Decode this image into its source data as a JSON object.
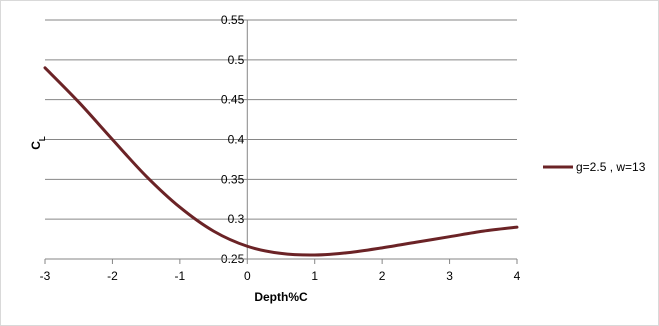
{
  "chart_data": {
    "type": "line",
    "title": "",
    "xlabel": "Depth%C",
    "ylabel": "C",
    "ylabel_subscript": "L",
    "xlim": [
      -3,
      4
    ],
    "ylim": [
      0.25,
      0.55
    ],
    "x_ticks": [
      "-3",
      "-2",
      "-1",
      "0",
      "1",
      "2",
      "3",
      "4"
    ],
    "y_ticks": [
      "0.25",
      "0.3",
      "0.35",
      "0.4",
      "0.45",
      "0.5",
      "0.55"
    ],
    "grid": "horizontal",
    "legend_position": "right",
    "series": [
      {
        "name": "g=2.5 , w=13",
        "color": "#6b2326",
        "x": [
          -3,
          -2.5,
          -2,
          -1.5,
          -1,
          -0.5,
          0,
          0.5,
          1,
          1.5,
          2,
          2.5,
          3,
          3.5,
          4
        ],
        "y": [
          0.49,
          0.447,
          0.4,
          0.354,
          0.315,
          0.285,
          0.266,
          0.257,
          0.255,
          0.258,
          0.264,
          0.271,
          0.278,
          0.285,
          0.29
        ]
      }
    ]
  }
}
